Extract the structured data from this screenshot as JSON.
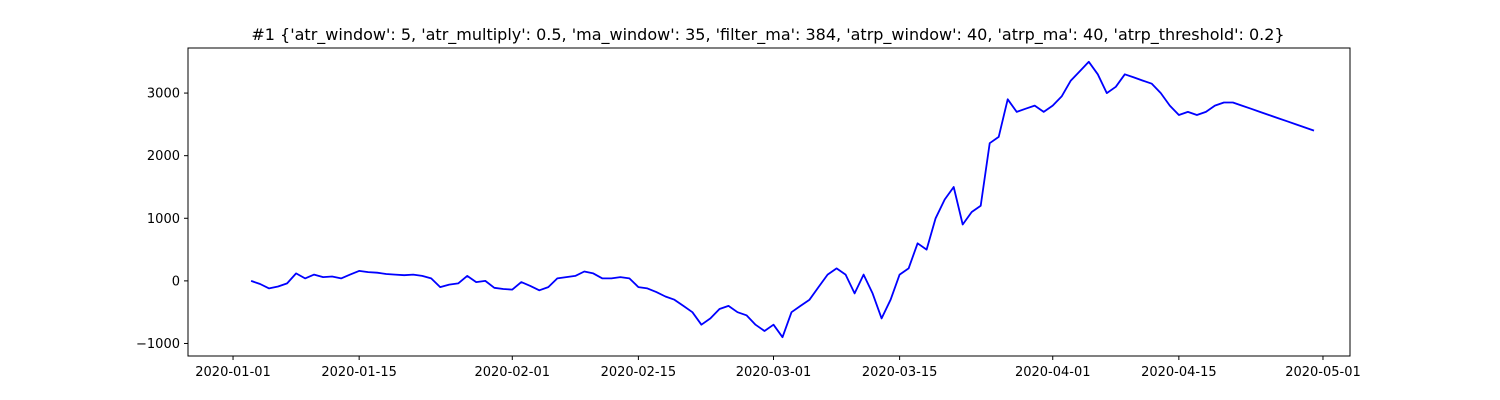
{
  "chart_data": {
    "type": "line",
    "title": "#1 {'atr_window': 5, 'atr_multiply': 0.5, 'ma_window': 35, 'filter_ma': 384, 'atrp_window': 40, 'atrp_ma': 40, 'atrp_threshold': 0.2}",
    "xlabel": "",
    "ylabel": "",
    "grid": false,
    "legend": "none",
    "xlim": [
      "2019-12-27",
      "2020-05-04"
    ],
    "ylim": [
      -1200,
      3720
    ],
    "x_ticks": [
      "2020-01-01",
      "2020-01-15",
      "2020-02-01",
      "2020-02-15",
      "2020-03-01",
      "2020-03-15",
      "2020-04-01",
      "2020-04-15",
      "2020-05-01"
    ],
    "y_ticks": [
      -1000,
      0,
      1000,
      2000,
      3000
    ],
    "series": [
      {
        "color": "#0000ff",
        "x": [
          "2020-01-03",
          "2020-01-04",
          "2020-01-05",
          "2020-01-06",
          "2020-01-07",
          "2020-01-08",
          "2020-01-09",
          "2020-01-10",
          "2020-01-11",
          "2020-01-12",
          "2020-01-13",
          "2020-01-14",
          "2020-01-15",
          "2020-01-16",
          "2020-01-17",
          "2020-01-18",
          "2020-01-19",
          "2020-01-20",
          "2020-01-21",
          "2020-01-22",
          "2020-01-23",
          "2020-01-24",
          "2020-01-25",
          "2020-01-26",
          "2020-01-27",
          "2020-01-28",
          "2020-01-29",
          "2020-01-30",
          "2020-01-31",
          "2020-02-01",
          "2020-02-02",
          "2020-02-03",
          "2020-02-04",
          "2020-02-05",
          "2020-02-06",
          "2020-02-07",
          "2020-02-08",
          "2020-02-09",
          "2020-02-10",
          "2020-02-11",
          "2020-02-12",
          "2020-02-13",
          "2020-02-14",
          "2020-02-15",
          "2020-02-16",
          "2020-02-17",
          "2020-02-18",
          "2020-02-19",
          "2020-02-20",
          "2020-02-21",
          "2020-02-22",
          "2020-02-23",
          "2020-02-24",
          "2020-02-25",
          "2020-02-26",
          "2020-02-27",
          "2020-02-28",
          "2020-02-29",
          "2020-03-01",
          "2020-03-02",
          "2020-03-03",
          "2020-03-04",
          "2020-03-05",
          "2020-03-06",
          "2020-03-07",
          "2020-03-08",
          "2020-03-09",
          "2020-03-10",
          "2020-03-11",
          "2020-03-12",
          "2020-03-13",
          "2020-03-14",
          "2020-03-15",
          "2020-03-16",
          "2020-03-17",
          "2020-03-18",
          "2020-03-19",
          "2020-03-20",
          "2020-03-21",
          "2020-03-22",
          "2020-03-23",
          "2020-03-24",
          "2020-03-25",
          "2020-03-26",
          "2020-03-27",
          "2020-03-28",
          "2020-03-29",
          "2020-03-30",
          "2020-03-31",
          "2020-04-01",
          "2020-04-02",
          "2020-04-03",
          "2020-04-04",
          "2020-04-05",
          "2020-04-06",
          "2020-04-07",
          "2020-04-08",
          "2020-04-09",
          "2020-04-10",
          "2020-04-11",
          "2020-04-12",
          "2020-04-13",
          "2020-04-14",
          "2020-04-15",
          "2020-04-16",
          "2020-04-17",
          "2020-04-18",
          "2020-04-19",
          "2020-04-20",
          "2020-04-21",
          "2020-04-22",
          "2020-04-23",
          "2020-04-24",
          "2020-04-25",
          "2020-04-26",
          "2020-04-27",
          "2020-04-28",
          "2020-04-29",
          "2020-04-30"
        ],
        "values": [
          0,
          -50,
          -120,
          -90,
          -40,
          120,
          40,
          100,
          60,
          70,
          40,
          100,
          160,
          140,
          130,
          110,
          100,
          90,
          100,
          80,
          40,
          -100,
          -60,
          -40,
          80,
          -20,
          0,
          -110,
          -130,
          -140,
          -20,
          -80,
          -150,
          -100,
          40,
          60,
          80,
          150,
          120,
          40,
          40,
          60,
          40,
          -100,
          -120,
          -180,
          -250,
          -300,
          -400,
          -500,
          -700,
          -600,
          -450,
          -400,
          -500,
          -550,
          -700,
          -800,
          -700,
          -900,
          -500,
          -400,
          -300,
          -100,
          100,
          200,
          100,
          -200,
          100,
          -200,
          -600,
          -300,
          100,
          200,
          600,
          500,
          1000,
          1300,
          1500,
          900,
          1100,
          1200,
          2200,
          2300,
          2900,
          2700,
          2750,
          2800,
          2700,
          2800,
          2950,
          3200,
          3350,
          3500,
          3300,
          3000,
          3100,
          3300,
          3250,
          3200,
          3150,
          3000,
          2800,
          2650,
          2700,
          2650,
          2700,
          2800,
          2850,
          2850,
          2800,
          2750,
          2700,
          2650,
          2600,
          2550,
          2500,
          2450,
          2400
        ]
      }
    ]
  }
}
